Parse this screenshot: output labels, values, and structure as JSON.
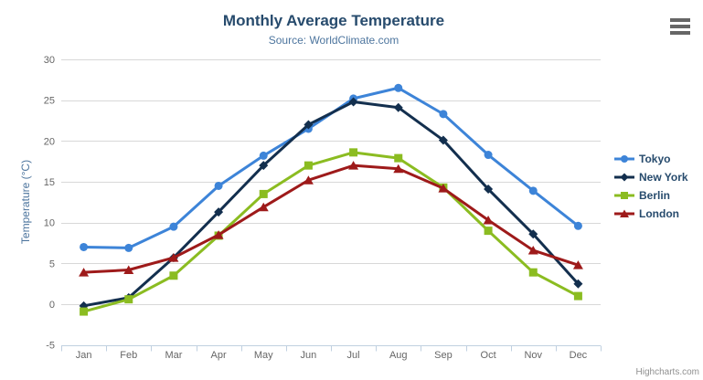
{
  "window": {
    "menu_icon": "hamburger-menu",
    "credits": "Highcharts.com"
  },
  "colors": {
    "title": "#274b6d",
    "subtitle": "#4d759e",
    "axis_label": "#666666",
    "axis_title": "#4d759e",
    "grid_line": "#d8d8d8",
    "axis_line": "#c0d0e0",
    "legend_text": "#274b6d",
    "credits": "#909090",
    "menu_icon": "#666666"
  },
  "chart_data": {
    "type": "line",
    "title": "Monthly Average Temperature",
    "subtitle": "Source: WorldClimate.com",
    "xlabel": "",
    "ylabel": "Temperature (°C)",
    "ylim": [
      -5,
      30
    ],
    "yticks": [
      -5,
      0,
      5,
      10,
      15,
      20,
      25,
      30
    ],
    "grid": true,
    "legend_position": "right",
    "categories": [
      "Jan",
      "Feb",
      "Mar",
      "Apr",
      "May",
      "Jun",
      "Jul",
      "Aug",
      "Sep",
      "Oct",
      "Nov",
      "Dec"
    ],
    "series": [
      {
        "name": "Tokyo",
        "color": "#3d84d8",
        "marker": "circle",
        "values": [
          7.0,
          6.9,
          9.5,
          14.5,
          18.2,
          21.5,
          25.2,
          26.5,
          23.3,
          18.3,
          13.9,
          9.6
        ]
      },
      {
        "name": "New York",
        "color": "#132f4e",
        "marker": "diamond",
        "values": [
          -0.2,
          0.8,
          5.7,
          11.3,
          17.0,
          22.0,
          24.8,
          24.1,
          20.1,
          14.1,
          8.6,
          2.5
        ]
      },
      {
        "name": "Berlin",
        "color": "#8bbc21",
        "marker": "square",
        "values": [
          -0.9,
          0.6,
          3.5,
          8.4,
          13.5,
          17.0,
          18.6,
          17.9,
          14.3,
          9.0,
          3.9,
          1.0
        ]
      },
      {
        "name": "London",
        "color": "#9e1a1a",
        "marker": "triangle",
        "values": [
          3.9,
          4.2,
          5.7,
          8.5,
          11.9,
          15.2,
          17.0,
          16.6,
          14.2,
          10.3,
          6.6,
          4.8
        ]
      }
    ]
  }
}
